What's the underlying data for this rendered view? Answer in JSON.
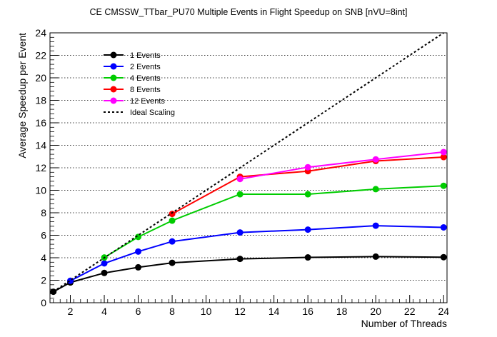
{
  "chart_data": {
    "type": "line",
    "title": "CE CMSSW_TTbar_PU70 Multiple Events in Flight Speedup on SNB [nVU=8int]",
    "xlabel": "Number of Threads",
    "ylabel": "Average Speedup per Event",
    "xlim": [
      0.8,
      24.2
    ],
    "ylim": [
      0,
      24
    ],
    "xticks": [
      2,
      4,
      6,
      8,
      10,
      12,
      14,
      16,
      18,
      20,
      22,
      24
    ],
    "yticks": [
      0,
      2,
      4,
      6,
      8,
      10,
      12,
      14,
      16,
      18,
      20,
      22,
      24
    ],
    "grid": "horizontal",
    "legend_position": "top-left",
    "series": [
      {
        "name": "1 Events",
        "color": "#000000",
        "x": [
          1,
          2,
          4,
          6,
          8,
          12,
          16,
          20,
          24
        ],
        "values": [
          0.98,
          1.8,
          2.65,
          3.15,
          3.55,
          3.9,
          4.03,
          4.1,
          4.05
        ]
      },
      {
        "name": "2 Events",
        "color": "#0000ff",
        "x": [
          2,
          4,
          6,
          8,
          12,
          16,
          20,
          24
        ],
        "values": [
          1.95,
          3.5,
          4.55,
          5.45,
          6.25,
          6.5,
          6.85,
          6.7
        ]
      },
      {
        "name": "4 Events",
        "color": "#00cc00",
        "x": [
          4,
          6,
          8,
          12,
          16,
          20,
          24
        ],
        "values": [
          4.02,
          5.85,
          7.3,
          9.65,
          9.65,
          10.1,
          10.4
        ]
      },
      {
        "name": "8 Events",
        "color": "#ff0000",
        "x": [
          8,
          12,
          16,
          20,
          24
        ],
        "values": [
          7.9,
          11.2,
          11.7,
          12.6,
          12.95
        ]
      },
      {
        "name": "12 Events",
        "color": "#ff00ff",
        "x": [
          12,
          16,
          20,
          24
        ],
        "values": [
          11.0,
          12.05,
          12.75,
          13.4
        ]
      },
      {
        "name": "Ideal Scaling",
        "color": "#000000",
        "dashed": true,
        "x": [
          1,
          24
        ],
        "values": [
          1,
          24
        ]
      }
    ]
  }
}
